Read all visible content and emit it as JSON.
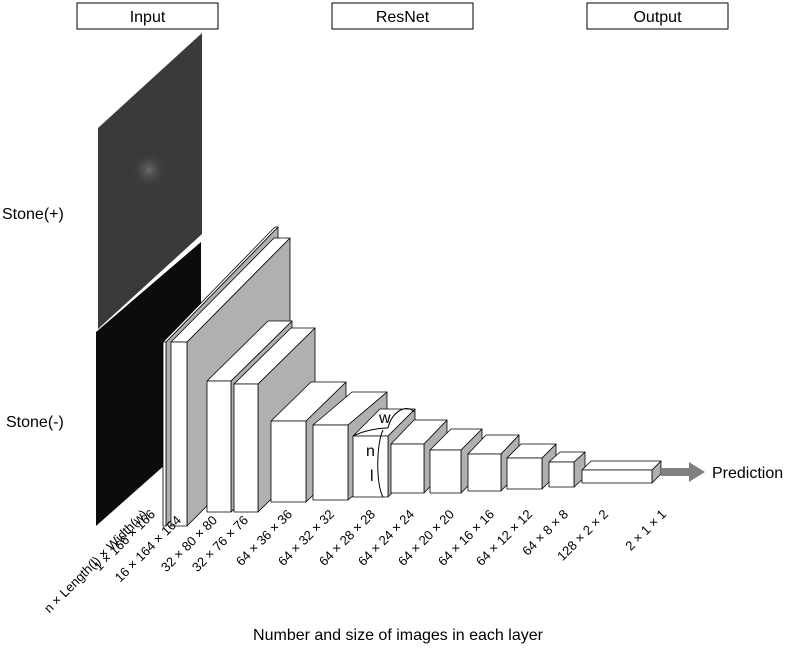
{
  "headers": {
    "input": "Input",
    "resnet": "ResNet",
    "output": "Output"
  },
  "inputs": {
    "positive": "Stone(+)",
    "negative": "Stone(-)"
  },
  "dimension_letters": {
    "width": "w",
    "number": "n",
    "length": "l"
  },
  "output_label": "Prediction",
  "layer_labels": [
    "n × Length(l) × Width(w)",
    "1 × 166 × 166",
    "16 × 164 × 164",
    "32 × 80 × 80",
    "32 × 76 × 76",
    "64 × 36 × 36",
    "64 × 32 × 32",
    "64 × 28 × 28",
    "64 × 24 × 24",
    "64 × 20 × 20",
    "64 × 16 × 16",
    "64 × 12 × 12",
    "64 × 8 × 8",
    "128 × 2 × 2",
    "2 × 1 × 1"
  ],
  "caption": "Number and size of images in each layer",
  "colors": {
    "front": "#ffffff",
    "top": "#ffffff",
    "side": "#b0b0b0",
    "edge": "#000000",
    "arrow": "#808080",
    "image_pos": "#3a3a3a",
    "image_neg": "#0c0c0c"
  }
}
